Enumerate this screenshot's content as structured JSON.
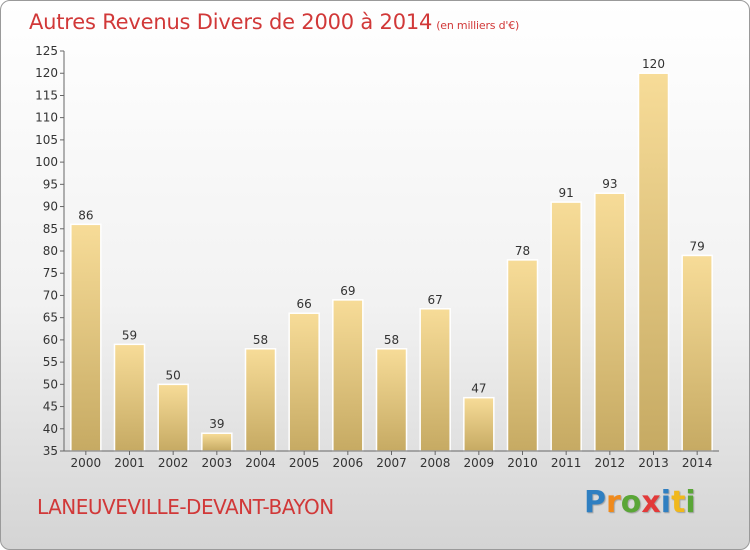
{
  "chart_data": {
    "type": "bar",
    "title": "Autres Revenus Divers de 2000 à 2014",
    "unit_note": "(en milliers d'€)",
    "categories": [
      "2000",
      "2001",
      "2002",
      "2003",
      "2004",
      "2005",
      "2006",
      "2007",
      "2008",
      "2009",
      "2010",
      "2011",
      "2012",
      "2013",
      "2014"
    ],
    "values": [
      86,
      59,
      50,
      39,
      58,
      66,
      69,
      58,
      67,
      47,
      78,
      91,
      93,
      120,
      79
    ],
    "ylim": [
      35,
      125
    ],
    "yticks": [
      35,
      40,
      45,
      50,
      55,
      60,
      65,
      70,
      75,
      80,
      85,
      90,
      95,
      100,
      105,
      110,
      115,
      120,
      125
    ],
    "grid": false,
    "bar_color_light": "#f7dc98",
    "bar_color_dark": "#c6aa63",
    "text_color": "#333333"
  },
  "footer": {
    "location": "LANEUVEVILLE-DEVANT-BAYON",
    "brand_letters": [
      {
        "ch": "P",
        "color": "#2f7fc1"
      },
      {
        "ch": "r",
        "color": "#f08a1c"
      },
      {
        "ch": "o",
        "color": "#5aa637"
      },
      {
        "ch": "x",
        "color": "#e23a3a"
      },
      {
        "ch": "i",
        "color": "#2f7fc1"
      },
      {
        "ch": "t",
        "color": "#f0b81c"
      },
      {
        "ch": "i",
        "color": "#5aa637"
      }
    ]
  }
}
